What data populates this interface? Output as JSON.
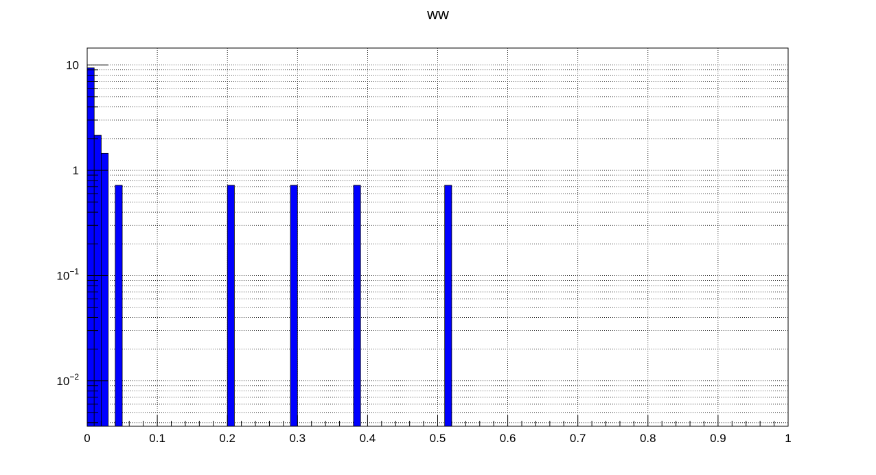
{
  "chart_data": {
    "type": "bar",
    "title": "ww",
    "xlabel": "",
    "ylabel": "",
    "xlim": [
      0,
      1
    ],
    "ylim": [
      0.0037,
      14.5
    ],
    "yscale": "log",
    "grid": true,
    "bar_color": "#0000ff",
    "edge_color": "#000000",
    "bin_width": 0.01,
    "bins": [
      {
        "x0": 0.0,
        "x1": 0.01,
        "value": 9.4
      },
      {
        "x0": 0.01,
        "x1": 0.02,
        "value": 2.15
      },
      {
        "x0": 0.02,
        "x1": 0.03,
        "value": 1.45
      },
      {
        "x0": 0.04,
        "x1": 0.05,
        "value": 0.72
      },
      {
        "x0": 0.2,
        "x1": 0.21,
        "value": 0.72
      },
      {
        "x0": 0.29,
        "x1": 0.3,
        "value": 0.72
      },
      {
        "x0": 0.38,
        "x1": 0.39,
        "value": 0.72
      },
      {
        "x0": 0.51,
        "x1": 0.52,
        "value": 0.72
      }
    ],
    "x_ticks": [
      "0",
      "0.1",
      "0.2",
      "0.3",
      "0.4",
      "0.5",
      "0.6",
      "0.7",
      "0.8",
      "0.9",
      "1"
    ],
    "y_ticks": [
      {
        "value": 10,
        "base": "10",
        "exp": ""
      },
      {
        "value": 1,
        "base": "1",
        "exp": ""
      },
      {
        "value": 0.1,
        "base": "10",
        "exp": "−1"
      },
      {
        "value": 0.01,
        "base": "10",
        "exp": "−2"
      }
    ]
  }
}
